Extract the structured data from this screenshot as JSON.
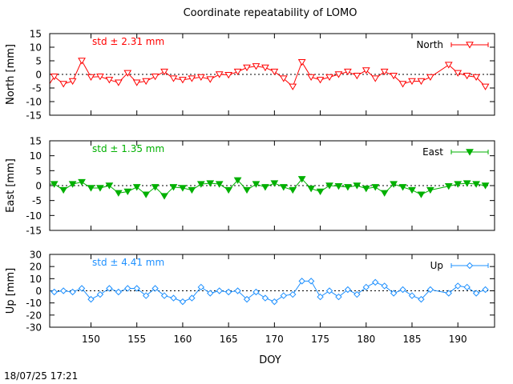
{
  "title": "Coordinate repeatability of LOMO",
  "timestamp": "18/07/25 17:21",
  "xlabel": "DOY",
  "chart_data": [
    {
      "type": "line",
      "name": "North",
      "legend": "North",
      "ylabel": "North [mm]",
      "annotation": "std ± 2.31 mm",
      "color": "#ff0000",
      "marker": "triangle-down-open",
      "xlim": [
        145.5,
        194
      ],
      "ylim": [
        -15,
        15
      ],
      "yticks": [
        -15,
        -10,
        -5,
        0,
        5,
        10,
        15
      ],
      "x": [
        145,
        146,
        147,
        148,
        149,
        150,
        151,
        152,
        153,
        154,
        155,
        156,
        157,
        158,
        159,
        160,
        161,
        162,
        163,
        164,
        165,
        166,
        167,
        168,
        169,
        170,
        171,
        172,
        173,
        174,
        175,
        176,
        177,
        178,
        179,
        180,
        181,
        182,
        183,
        184,
        185,
        186,
        187,
        189,
        190,
        191,
        192,
        193
      ],
      "y": [
        -6,
        -0.8,
        -3.5,
        -2.5,
        5,
        -1,
        -0.8,
        -2,
        -3,
        0.5,
        -3,
        -2.5,
        -0.8,
        1,
        -1.5,
        -2,
        -1.5,
        -1,
        -1.8,
        0,
        -0.2,
        1,
        2.5,
        3,
        2.5,
        1,
        -1.5,
        -4.5,
        4.5,
        -1,
        -2,
        -1,
        0,
        1,
        -0.5,
        1.5,
        -1.5,
        1,
        -0.5,
        -3.5,
        -2.5,
        -2.5,
        -1,
        3.5,
        0.5,
        -0.5,
        -1,
        -4.5
      ]
    },
    {
      "type": "line",
      "name": "East",
      "legend": "East",
      "ylabel": "East [mm]",
      "annotation": "std ± 1.35 mm",
      "color": "#00b000",
      "marker": "triangle-down-filled",
      "xlim": [
        145.5,
        194
      ],
      "ylim": [
        -15,
        15
      ],
      "yticks": [
        -15,
        -10,
        -5,
        0,
        5,
        10,
        15
      ],
      "x": [
        145,
        146,
        147,
        148,
        149,
        150,
        151,
        152,
        153,
        154,
        155,
        156,
        157,
        158,
        159,
        160,
        161,
        162,
        163,
        164,
        165,
        166,
        167,
        168,
        169,
        170,
        171,
        172,
        173,
        174,
        175,
        176,
        177,
        178,
        179,
        180,
        181,
        182,
        183,
        184,
        185,
        186,
        187,
        189,
        190,
        191,
        192,
        193
      ],
      "y": [
        0.5,
        0.5,
        -1.5,
        0.5,
        1.2,
        -0.8,
        -0.8,
        0,
        -2.5,
        -2,
        -0.5,
        -3,
        -0.5,
        -3.5,
        -0.5,
        -0.8,
        -1.5,
        0.5,
        0.8,
        0.5,
        -1.5,
        1.8,
        -1.5,
        0.5,
        -0.5,
        0.8,
        -0.5,
        -1.5,
        2.2,
        -1,
        -2,
        0,
        -0.2,
        -0.5,
        0,
        -1,
        -0.5,
        -2.5,
        0.5,
        -0.5,
        -1.5,
        -3,
        -1.5,
        -0.2,
        0.5,
        0.8,
        0.5,
        0
      ]
    },
    {
      "type": "line",
      "name": "Up",
      "legend": "Up",
      "ylabel": "Up [mm]",
      "annotation": "std ± 4.41 mm",
      "color": "#1e90ff",
      "marker": "diamond-open",
      "xlim": [
        145.5,
        194
      ],
      "ylim": [
        -30,
        30
      ],
      "yticks": [
        -30,
        -20,
        -10,
        0,
        10,
        20,
        30
      ],
      "x": [
        145,
        146,
        147,
        148,
        149,
        150,
        151,
        152,
        153,
        154,
        155,
        156,
        157,
        158,
        159,
        160,
        161,
        162,
        163,
        164,
        165,
        166,
        167,
        168,
        169,
        170,
        171,
        172,
        173,
        174,
        175,
        176,
        177,
        178,
        179,
        180,
        181,
        182,
        183,
        184,
        185,
        186,
        187,
        189,
        190,
        191,
        192,
        193
      ],
      "y": [
        1,
        -1,
        0,
        -1,
        2,
        -7,
        -3,
        2,
        -1,
        2,
        2,
        -4,
        2,
        -4,
        -6,
        -9,
        -6,
        3,
        -2,
        0,
        -1,
        0,
        -7,
        -1,
        -6,
        -9,
        -4,
        -3,
        8,
        8,
        -5,
        0,
        -5,
        1,
        -3,
        3,
        7,
        4,
        -2,
        1,
        -4,
        -7,
        1,
        -2,
        4,
        3,
        -2,
        1
      ]
    }
  ],
  "xaxis": {
    "ticks": [
      150,
      155,
      160,
      165,
      170,
      175,
      180,
      185,
      190
    ]
  }
}
